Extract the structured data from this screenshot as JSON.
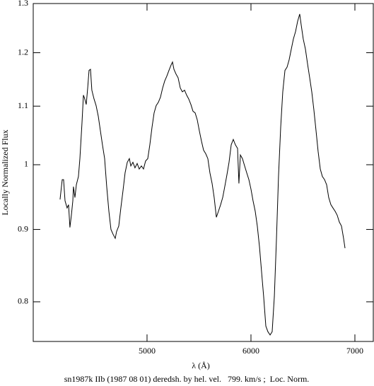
{
  "chart_data": {
    "type": "line",
    "caption": "sn1987k IIb (1987 08 01) deredsh. by hel. vel.   799. km/s ;  Loc. Norm.",
    "xlabel": "λ (Å)",
    "ylabel": "Locally Normalized Flux",
    "xlim": [
      3905,
      7177
    ],
    "ylim": [
      0.75,
      1.3
    ],
    "yscale": "log",
    "xticks": [
      5000,
      6000,
      7000
    ],
    "yticks": [
      0.8,
      0.9,
      1,
      1.1,
      1.2,
      1.3
    ],
    "color": "#000000",
    "x": [
      4163,
      4184,
      4197,
      4211,
      4231,
      4245,
      4258,
      4272,
      4286,
      4292,
      4306,
      4320,
      4340,
      4354,
      4374,
      4388,
      4401,
      4415,
      4429,
      4442,
      4456,
      4469,
      4490,
      4510,
      4531,
      4551,
      4571,
      4592,
      4612,
      4633,
      4653,
      4673,
      4694,
      4707,
      4728,
      4748,
      4769,
      4789,
      4810,
      4830,
      4844,
      4864,
      4884,
      4905,
      4925,
      4946,
      4966,
      4986,
      5007,
      5027,
      5048,
      5068,
      5088,
      5109,
      5129,
      5150,
      5170,
      5190,
      5211,
      5231,
      5245,
      5259,
      5279,
      5299,
      5320,
      5340,
      5361,
      5381,
      5401,
      5422,
      5442,
      5463,
      5483,
      5503,
      5524,
      5544,
      5565,
      5585,
      5605,
      5626,
      5646,
      5667,
      5687,
      5708,
      5728,
      5748,
      5769,
      5789,
      5810,
      5830,
      5850,
      5871,
      5884,
      5898,
      5918,
      5939,
      5959,
      5980,
      6000,
      6020,
      6041,
      6061,
      6082,
      6102,
      6122,
      6143,
      6163,
      6184,
      6204,
      6225,
      6245,
      6265,
      6286,
      6306,
      6327,
      6347,
      6367,
      6388,
      6408,
      6429,
      6449,
      6469,
      6483,
      6503,
      6524,
      6544,
      6565,
      6585,
      6605,
      6626,
      6646,
      6667,
      6687,
      6708,
      6728,
      6748,
      6769,
      6789,
      6810,
      6830,
      6850,
      6871,
      6891,
      6905
    ],
    "values": [
      0.945,
      0.976,
      0.976,
      0.943,
      0.932,
      0.937,
      0.903,
      0.921,
      0.943,
      0.965,
      0.948,
      0.968,
      0.981,
      1.01,
      1.07,
      1.12,
      1.113,
      1.103,
      1.133,
      1.166,
      1.168,
      1.129,
      1.113,
      1.101,
      1.082,
      1.057,
      1.033,
      1.01,
      0.965,
      0.927,
      0.9,
      0.893,
      0.887,
      0.897,
      0.905,
      0.932,
      0.959,
      0.987,
      1.004,
      1.01,
      0.998,
      1.004,
      0.995,
      1.002,
      0.993,
      0.998,
      0.993,
      1.006,
      1.01,
      1.033,
      1.063,
      1.088,
      1.101,
      1.107,
      1.116,
      1.133,
      1.146,
      1.155,
      1.166,
      1.176,
      1.182,
      1.168,
      1.159,
      1.152,
      1.133,
      1.126,
      1.129,
      1.12,
      1.113,
      1.103,
      1.091,
      1.088,
      1.076,
      1.057,
      1.039,
      1.024,
      1.018,
      1.01,
      0.987,
      0.97,
      0.948,
      0.918,
      0.927,
      0.937,
      0.948,
      0.965,
      0.984,
      1.004,
      1.033,
      1.042,
      1.033,
      1.027,
      0.97,
      1.016,
      1.01,
      0.998,
      0.987,
      0.976,
      0.961,
      0.943,
      0.927,
      0.905,
      0.875,
      0.84,
      0.807,
      0.769,
      0.762,
      0.758,
      0.762,
      0.807,
      0.885,
      0.981,
      1.063,
      1.126,
      1.166,
      1.172,
      1.186,
      1.207,
      1.227,
      1.242,
      1.263,
      1.278,
      1.256,
      1.227,
      1.207,
      1.179,
      1.152,
      1.126,
      1.094,
      1.057,
      1.022,
      0.993,
      0.981,
      0.976,
      0.968,
      0.948,
      0.937,
      0.932,
      0.927,
      0.921,
      0.911,
      0.905,
      0.887,
      0.873
    ]
  }
}
